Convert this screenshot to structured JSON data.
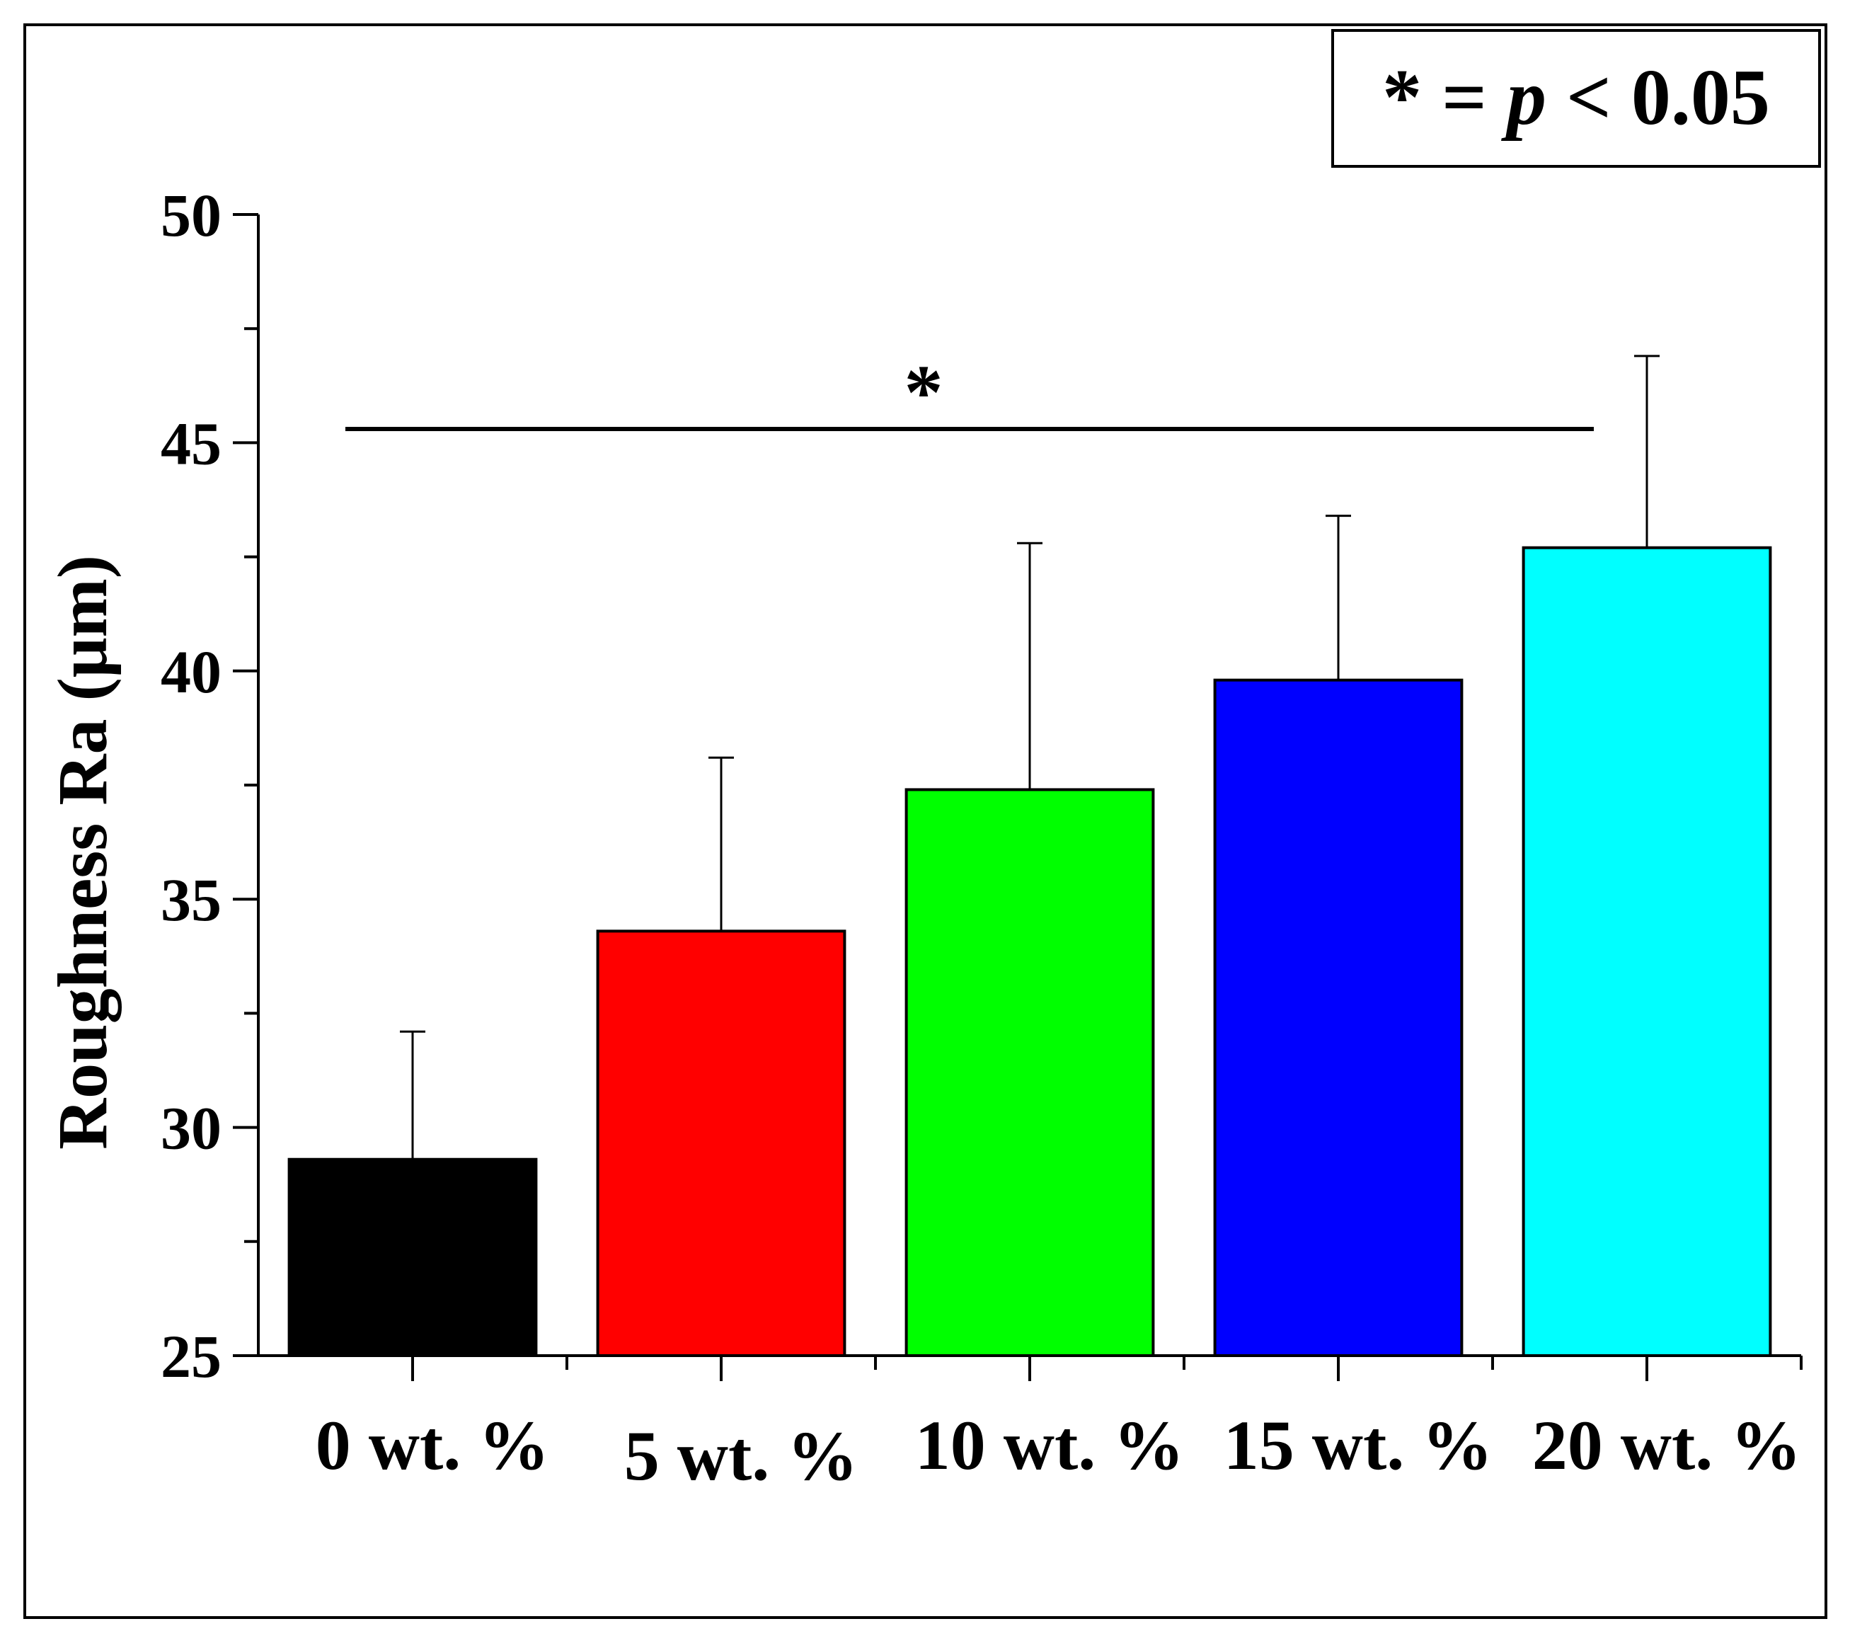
{
  "chart_data": {
    "type": "bar",
    "title": "",
    "xlabel": "",
    "ylabel": "Roughness Ra (μm)",
    "ylim": [
      25,
      50
    ],
    "yticks": [
      "25",
      "30",
      "35",
      "40",
      "45",
      "50"
    ],
    "grid": false,
    "categories": [
      "0 wt. %",
      "5 wt. %",
      "10 wt. %",
      "15 wt. %",
      "20 wt. %"
    ],
    "values": [
      29.3,
      34.3,
      37.4,
      39.8,
      42.7
    ],
    "errors": [
      2.8,
      3.8,
      5.4,
      3.6,
      4.2
    ],
    "bar_colors": [
      "#000000",
      "#ff0000",
      "#00ff00",
      "#0000ff",
      "#00ffff"
    ],
    "significance": {
      "marker": "*",
      "from": "0 wt. %",
      "to": "20 wt. %",
      "level": 45.3
    },
    "legend": {
      "placement": "top-right",
      "parts": [
        "* = ",
        "p",
        " < 0.05"
      ]
    }
  }
}
